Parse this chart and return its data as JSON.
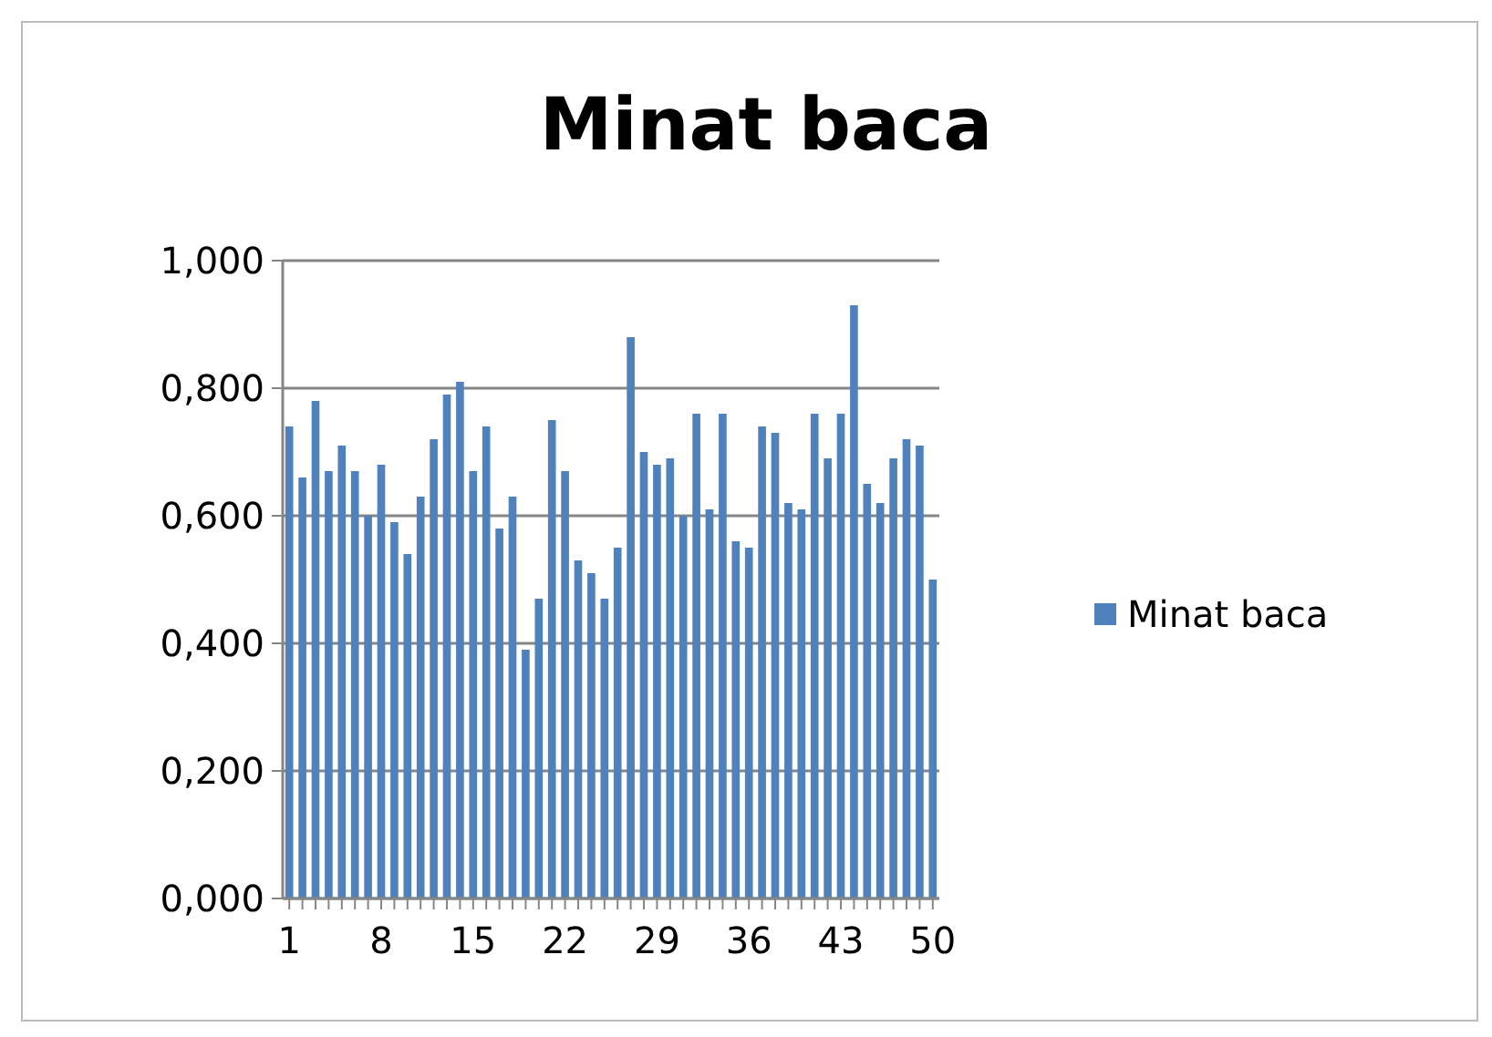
{
  "chart_data": {
    "type": "bar",
    "title": "Minat baca",
    "categories": [
      "1",
      null,
      null,
      null,
      null,
      null,
      null,
      "8",
      null,
      null,
      null,
      null,
      null,
      null,
      "15",
      null,
      null,
      null,
      null,
      null,
      null,
      "22",
      null,
      null,
      null,
      null,
      null,
      null,
      "29",
      null,
      null,
      null,
      null,
      null,
      null,
      "36",
      null,
      null,
      null,
      null,
      null,
      null,
      "43",
      null,
      null,
      null,
      null,
      null,
      null,
      "50"
    ],
    "series": [
      {
        "name": "Minat baca",
        "color": "#4f81bd",
        "values": [
          0.74,
          0.66,
          0.78,
          0.67,
          0.71,
          0.67,
          0.6,
          0.68,
          0.59,
          0.54,
          0.63,
          0.72,
          0.79,
          0.81,
          0.67,
          0.74,
          0.58,
          0.63,
          0.39,
          0.47,
          0.75,
          0.67,
          0.53,
          0.51,
          0.47,
          0.55,
          0.88,
          0.7,
          0.68,
          0.69,
          0.6,
          0.76,
          0.61,
          0.76,
          0.56,
          0.55,
          0.74,
          0.73,
          0.62,
          0.61,
          0.76,
          0.69,
          0.76,
          0.93,
          0.65,
          0.62,
          0.69,
          0.72,
          0.71,
          0.5
        ]
      }
    ],
    "ylim": [
      0,
      1
    ],
    "yticks": [
      {
        "value": 0,
        "label": "0,000"
      },
      {
        "value": 0.2,
        "label": "0,200"
      },
      {
        "value": 0.4,
        "label": "0,400"
      },
      {
        "value": 0.6,
        "label": "0,600"
      },
      {
        "value": 0.8,
        "label": "0,800"
      },
      {
        "value": 1,
        "label": "1,000"
      }
    ],
    "grid": "y",
    "legend": "right"
  }
}
